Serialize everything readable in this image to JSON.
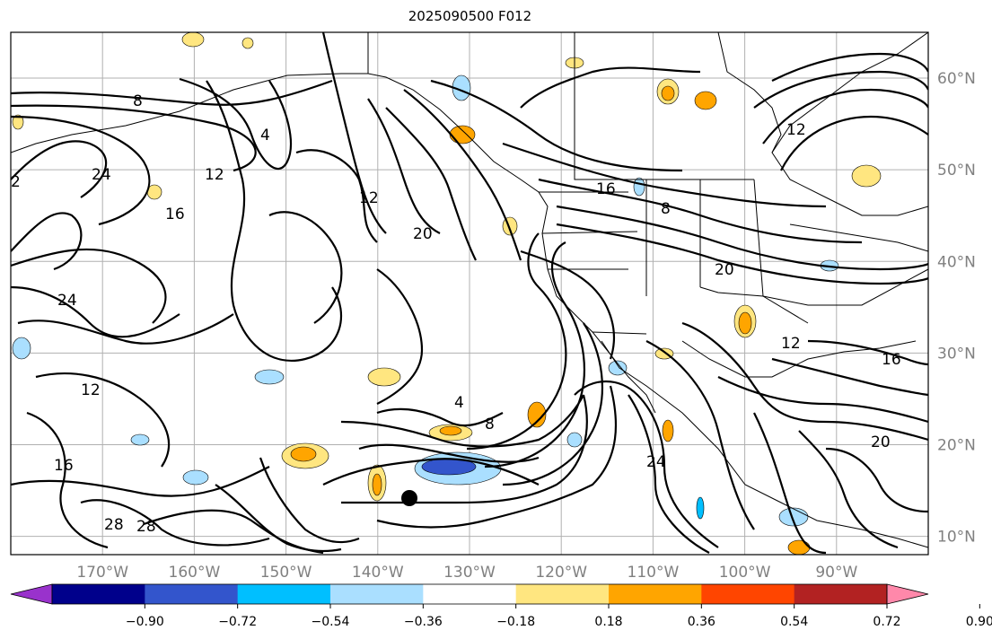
{
  "title": "2025090500 F012",
  "map": {
    "lon_range": [
      -180,
      -80
    ],
    "lat_range": [
      8,
      65
    ],
    "lon_ticks": [
      {
        "value": -170,
        "label": "170°W"
      },
      {
        "value": -160,
        "label": "160°W"
      },
      {
        "value": -150,
        "label": "150°W"
      },
      {
        "value": -140,
        "label": "140°W"
      },
      {
        "value": -130,
        "label": "130°W"
      },
      {
        "value": -120,
        "label": "120°W"
      },
      {
        "value": -110,
        "label": "110°W"
      },
      {
        "value": -100,
        "label": "100°W"
      },
      {
        "value": -90,
        "label": "90°W"
      }
    ],
    "lat_ticks": [
      {
        "value": 10,
        "label": "10°N"
      },
      {
        "value": 20,
        "label": "20°N"
      },
      {
        "value": 30,
        "label": "30°N"
      },
      {
        "value": 40,
        "label": "40°N"
      },
      {
        "value": 50,
        "label": "50°N"
      },
      {
        "value": 60,
        "label": "60°N"
      }
    ],
    "grid": true,
    "contour_labels": [
      "8",
      "12",
      "16",
      "20",
      "24",
      "28",
      "4",
      "2"
    ],
    "colors": {
      "tick_label": "#808080",
      "grid": "#b0b0b0",
      "contour": "#000000"
    }
  },
  "colorbar": {
    "orientation": "horizontal",
    "extend": "both",
    "colors": [
      "#9932cc",
      "#00008b",
      "#3355cc",
      "#00bfff",
      "#aadfff",
      "#ffffff",
      "#ffe680",
      "#ffa500",
      "#ff4500",
      "#b22222",
      "#ff88aa"
    ],
    "ticks": [
      "−0.90",
      "−0.72",
      "−0.54",
      "−0.36",
      "−0.18",
      "0.18",
      "0.36",
      "0.54",
      "0.72",
      "0.90"
    ]
  }
}
